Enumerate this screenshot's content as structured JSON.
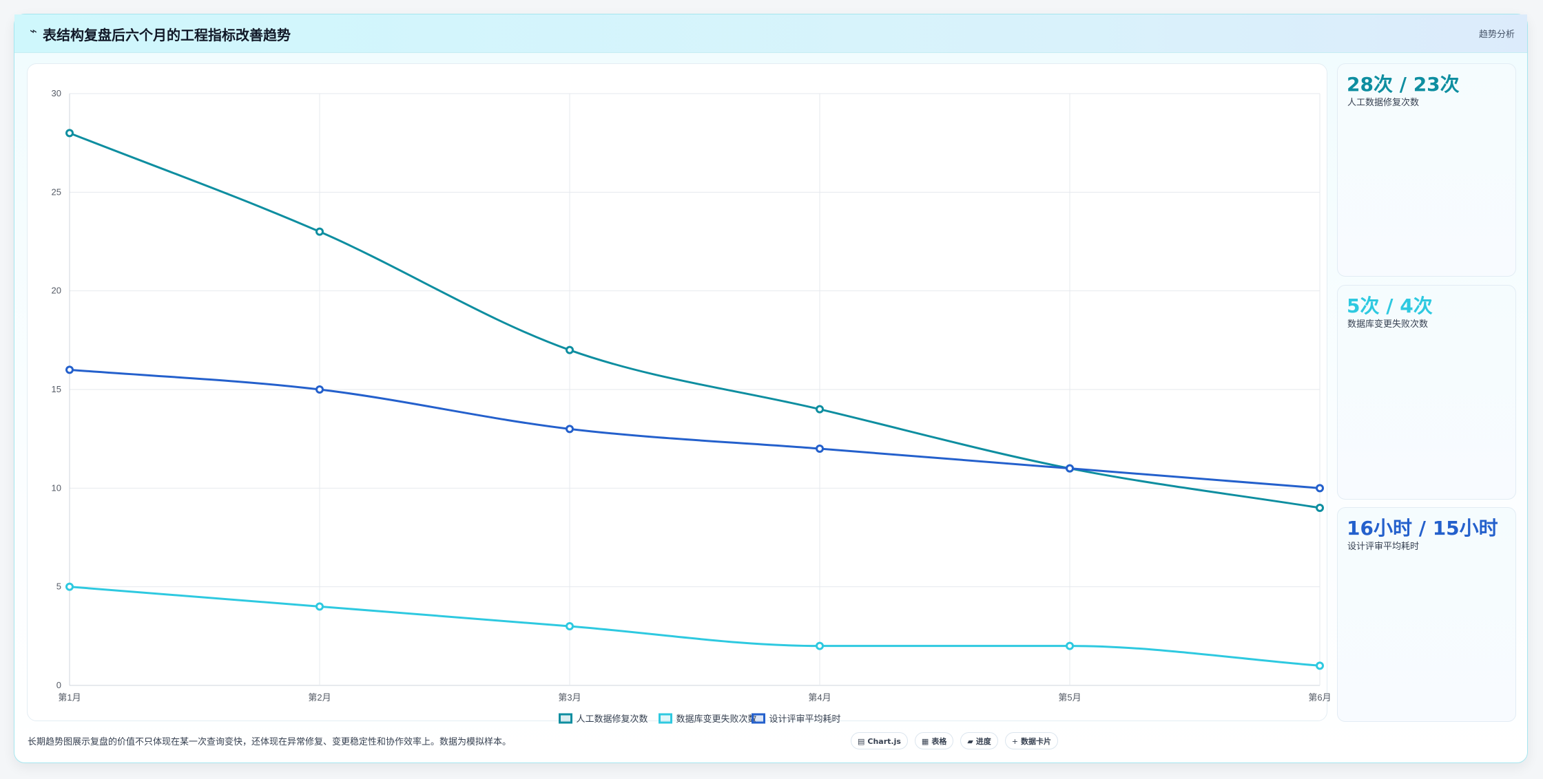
{
  "header": {
    "icon": "chart-line-icon",
    "title": "表结构复盘后六个月的工程指标改善趋势",
    "tag": "趋势分析"
  },
  "kpis": [
    {
      "value": "28次 / 23次",
      "label": "人工数据修复次数",
      "color": "#0e8ea0"
    },
    {
      "value": "5次 / 4次",
      "label": "数据库变更失败次数",
      "color": "#2ec9e0"
    },
    {
      "value": "16小时 / 15小时",
      "label": "设计评审平均耗时",
      "color": "#2460cc"
    }
  ],
  "footer": {
    "note": "长期趋势图展示复盘的价值不只体现在某一次查询变快，还体现在异常修复、变更稳定性和协作效率上。数据为模拟样本。",
    "chips": [
      {
        "icon": "▤",
        "label": "Chart.js"
      },
      {
        "icon": "▦",
        "label": "表格"
      },
      {
        "icon": "▰",
        "label": "进度"
      },
      {
        "icon": "+",
        "label": "数据卡片"
      }
    ]
  },
  "chart_data": {
    "type": "line",
    "categories": [
      "第1月",
      "第2月",
      "第3月",
      "第4月",
      "第5月",
      "第6月"
    ],
    "ylim": [
      0,
      30
    ],
    "yticks": [
      0,
      5,
      10,
      15,
      20,
      25,
      30
    ],
    "grid": true,
    "legend": "bottom",
    "series": [
      {
        "name": "人工数据修复次数",
        "color": "#0e8ea0",
        "values": [
          28,
          23,
          17,
          14,
          11,
          9
        ]
      },
      {
        "name": "数据库变更失败次数",
        "color": "#2ec9e0",
        "values": [
          5,
          4,
          3,
          2,
          2,
          1
        ]
      },
      {
        "name": "设计评审平均耗时",
        "color": "#2460cc",
        "values": [
          16,
          15,
          13,
          12,
          11,
          10
        ]
      }
    ]
  }
}
